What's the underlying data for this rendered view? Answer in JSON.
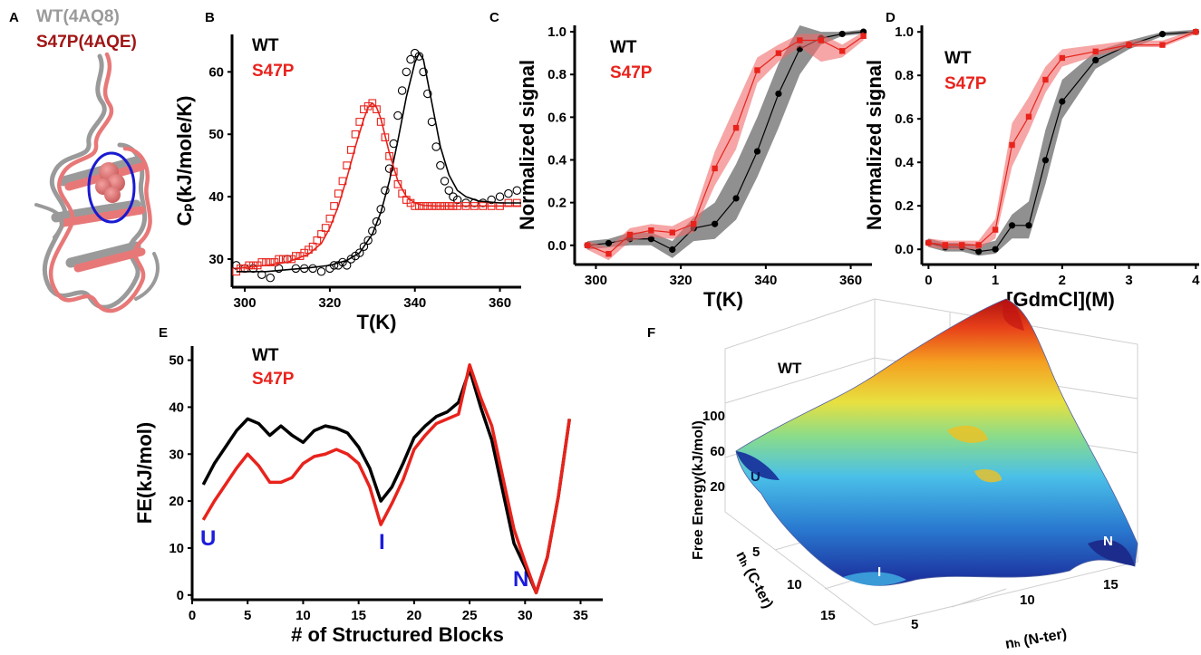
{
  "panels": {
    "A": {
      "label": "A",
      "legend": [
        "WT(4AQ8)",
        "S47P(4AQE)"
      ],
      "colors": [
        "#9a9a9a",
        "#a01616"
      ]
    },
    "B": {
      "label": "B",
      "legend": [
        "WT",
        "S47P"
      ]
    },
    "C": {
      "label": "C",
      "legend": [
        "WT",
        "S47P"
      ]
    },
    "D": {
      "label": "D",
      "legend": [
        "WT",
        "S47P"
      ]
    },
    "E": {
      "label": "E",
      "legend": [
        "WT",
        "S47P"
      ],
      "states": [
        "U",
        "I",
        "N"
      ]
    },
    "F": {
      "label": "F",
      "title": "WT",
      "states": [
        "U",
        "I",
        "N"
      ],
      "zlabel": "Free Energy(kJ/mol)",
      "xlabel": "nₕ (N-ter)",
      "ylabel": "nₕ (C-ter)",
      "xticks": [
        "5",
        "10",
        "15"
      ],
      "yticks": [
        "5",
        "10",
        "15"
      ],
      "zticks": [
        "20",
        "60",
        "100"
      ],
      "colormap": "jet"
    }
  },
  "colors": {
    "wt": "#000000",
    "s47p": "#e8231c",
    "wt_band": "#555555",
    "s47p_band": "#f06a6a",
    "state": "#1c1cdc"
  },
  "chart_data": [
    {
      "panel": "B",
      "type": "scatter",
      "xlabel": "T(K)",
      "ylabel": "Cₚ(kJ/mole/K)",
      "xlim": [
        297,
        365
      ],
      "ylim": [
        25.5,
        66
      ],
      "xticks": [
        300,
        320,
        340,
        360
      ],
      "yticks": [
        30,
        40,
        50,
        60
      ],
      "series": [
        {
          "name": "WT",
          "marker": "circle",
          "x": [
            298,
            300,
            302,
            304,
            306,
            308,
            310,
            312,
            314,
            316,
            318,
            320,
            321,
            322,
            323,
            324,
            325,
            326,
            327,
            328,
            329,
            330,
            331,
            332,
            333,
            334,
            335,
            336,
            337,
            338,
            339,
            340,
            341,
            342,
            343,
            344,
            345,
            346,
            347,
            348,
            349,
            350,
            352,
            354,
            356,
            358,
            360,
            362,
            364
          ],
          "y": [
            29,
            28.5,
            28.5,
            27.5,
            27,
            28.5,
            30,
            28.5,
            28.5,
            28.5,
            28,
            28.5,
            29,
            29,
            29.5,
            29,
            30,
            30.5,
            31,
            32,
            33,
            34.5,
            36,
            38,
            41,
            44.5,
            48.5,
            53,
            57,
            60,
            62,
            63,
            62.5,
            60,
            56.5,
            52,
            48,
            45,
            42.5,
            41,
            40,
            39.5,
            39,
            39,
            39,
            39.5,
            40,
            40.5,
            41
          ]
        },
        {
          "name": "S47P",
          "marker": "square",
          "x": [
            298,
            299,
            300,
            301,
            302,
            303,
            304,
            305,
            306,
            307,
            308,
            309,
            310,
            311,
            312,
            313,
            314,
            315,
            316,
            317,
            318,
            319,
            320,
            321,
            322,
            323,
            324,
            325,
            326,
            327,
            328,
            329,
            330,
            331,
            332,
            333,
            334,
            335,
            336,
            337,
            338,
            339,
            340,
            341,
            342,
            343,
            344,
            345,
            346,
            347,
            348,
            349,
            350,
            352,
            354,
            356,
            358,
            360,
            362,
            364
          ],
          "y": [
            28,
            28.5,
            28.5,
            29,
            29,
            29,
            29.5,
            29.5,
            29.5,
            29.5,
            30,
            30,
            30,
            30,
            30.5,
            30.5,
            31,
            31.5,
            32,
            33,
            34,
            35,
            36.5,
            38.5,
            40.5,
            42.5,
            45,
            47.5,
            50,
            52,
            54,
            54.5,
            55,
            54,
            52,
            49.5,
            46.5,
            44,
            42,
            40.5,
            39.5,
            39,
            38.5,
            38.5,
            38.5,
            38.5,
            38.5,
            38.5,
            38.5,
            38.5,
            38.5,
            38.5,
            38.5,
            38.5,
            38.5,
            38.5,
            38.5,
            38.5,
            39,
            39
          ]
        },
        {
          "name": "WT fit",
          "style": "line",
          "color": "#000000",
          "x": [
            298,
            305,
            310,
            315,
            320,
            324,
            327,
            330,
            332,
            334,
            336,
            338,
            340,
            341,
            342,
            344,
            346,
            348,
            350,
            352,
            355,
            360,
            365
          ],
          "y": [
            28,
            28,
            28.3,
            28.6,
            29,
            29.8,
            31,
            34,
            37.5,
            42.5,
            49,
            56,
            61.5,
            63,
            62,
            55,
            48,
            43.5,
            41,
            40,
            39.3,
            39,
            39
          ]
        },
        {
          "name": "S47P fit",
          "style": "line",
          "color": "#e8231c",
          "x": [
            298,
            305,
            310,
            315,
            318,
            320,
            322,
            324,
            326,
            328,
            329,
            330,
            331,
            332,
            334,
            336,
            338,
            340,
            342,
            345,
            350,
            355,
            360,
            365
          ],
          "y": [
            28.5,
            29,
            29.5,
            30.8,
            32.5,
            35,
            38.5,
            43,
            48,
            52.5,
            54.3,
            55,
            54.3,
            52.5,
            47,
            42.5,
            40,
            39,
            38.6,
            38.5,
            38.5,
            38.5,
            38.5,
            38.5
          ]
        }
      ]
    },
    {
      "panel": "C",
      "type": "line",
      "xlabel": "T(K)",
      "ylabel": "Normalized signal",
      "xlim": [
        295,
        365
      ],
      "ylim": [
        -0.09,
        1.03
      ],
      "xticks": [
        300,
        320,
        340,
        360
      ],
      "yticks": [
        0.0,
        0.2,
        0.4,
        0.6,
        0.8,
        1.0
      ],
      "series": [
        {
          "name": "WT",
          "color": "#000000",
          "marker": "circle",
          "x": [
            298,
            303,
            308,
            313,
            318,
            323,
            328,
            333,
            338,
            343,
            348,
            353,
            358,
            363
          ],
          "y": [
            0.0,
            0.01,
            0.03,
            0.03,
            -0.02,
            0.08,
            0.1,
            0.22,
            0.44,
            0.71,
            0.92,
            0.97,
            0.99,
            1.0
          ],
          "band_low": [
            -0.02,
            -0.01,
            0.0,
            0.0,
            -0.06,
            0.02,
            0.03,
            0.12,
            0.32,
            0.55,
            0.8,
            0.94,
            0.98,
            0.99
          ],
          "band_high": [
            0.02,
            0.03,
            0.06,
            0.06,
            0.02,
            0.13,
            0.2,
            0.38,
            0.6,
            0.85,
            1.03,
            1.0,
            1.0,
            1.01
          ]
        },
        {
          "name": "S47P",
          "color": "#e8231c",
          "marker": "square",
          "x": [
            298,
            303,
            308,
            313,
            318,
            323,
            328,
            333,
            338,
            343,
            348,
            353,
            358,
            363
          ],
          "y": [
            0.0,
            -0.04,
            0.05,
            0.07,
            0.06,
            0.1,
            0.36,
            0.55,
            0.82,
            0.9,
            0.96,
            0.96,
            0.91,
            0.98
          ],
          "band_low": [
            -0.02,
            -0.07,
            0.02,
            0.04,
            0.03,
            0.06,
            0.28,
            0.45,
            0.76,
            0.86,
            0.93,
            0.86,
            0.88,
            0.96
          ],
          "band_high": [
            0.02,
            -0.01,
            0.08,
            0.1,
            0.09,
            0.14,
            0.44,
            0.66,
            0.88,
            0.94,
            0.99,
            0.99,
            0.94,
            1.0
          ]
        }
      ]
    },
    {
      "panel": "D",
      "type": "line",
      "xlabel": "[GdmCl](M)",
      "ylabel": "Normalized signal",
      "xlim": [
        -0.1,
        4.05
      ],
      "ylim": [
        -0.07,
        1.03
      ],
      "xticks": [
        0,
        1,
        2,
        3,
        4
      ],
      "yticks": [
        0.0,
        0.2,
        0.4,
        0.6,
        0.8,
        1.0
      ],
      "series": [
        {
          "name": "WT",
          "color": "#000000",
          "marker": "circle",
          "x": [
            0,
            0.25,
            0.5,
            0.75,
            1.0,
            1.25,
            1.5,
            1.75,
            2.0,
            2.5,
            3.0,
            3.5,
            4.0
          ],
          "y": [
            0.03,
            0.01,
            0.01,
            -0.01,
            0.0,
            0.11,
            0.11,
            0.41,
            0.68,
            0.87,
            0.94,
            0.99,
            1.0
          ],
          "band_low": [
            0.01,
            -0.01,
            -0.01,
            -0.03,
            -0.02,
            0.05,
            0.05,
            0.3,
            0.6,
            0.83,
            0.92,
            0.98,
            0.99
          ],
          "band_high": [
            0.05,
            0.03,
            0.03,
            0.02,
            0.04,
            0.16,
            0.22,
            0.55,
            0.78,
            0.91,
            0.96,
            1.0,
            1.01
          ]
        },
        {
          "name": "S47P",
          "color": "#e8231c",
          "marker": "square",
          "x": [
            0,
            0.25,
            0.5,
            0.75,
            1.0,
            1.25,
            1.5,
            1.75,
            2.0,
            2.5,
            3.0,
            3.5,
            4.0
          ],
          "y": [
            0.03,
            0.02,
            0.02,
            0.02,
            0.09,
            0.48,
            0.61,
            0.78,
            0.88,
            0.91,
            0.94,
            0.94,
            1.0
          ],
          "band_low": [
            0.01,
            0.0,
            0.0,
            0.0,
            0.05,
            0.38,
            0.54,
            0.72,
            0.84,
            0.89,
            0.93,
            0.93,
            0.99
          ],
          "band_high": [
            0.05,
            0.04,
            0.04,
            0.04,
            0.14,
            0.58,
            0.7,
            0.84,
            0.92,
            0.94,
            0.96,
            0.96,
            1.01
          ]
        }
      ]
    },
    {
      "panel": "E",
      "type": "line",
      "xlabel": "# of Structured Blocks",
      "ylabel": "FE(kJ/mol)",
      "xlim": [
        0,
        37
      ],
      "ylim": [
        -1,
        53
      ],
      "xticks": [
        0,
        5,
        10,
        15,
        20,
        25,
        30,
        35
      ],
      "yticks": [
        0,
        10,
        20,
        30,
        40,
        50
      ],
      "series": [
        {
          "name": "WT",
          "color": "#000000",
          "x": [
            1,
            2,
            3,
            4,
            5,
            6,
            7,
            8,
            9,
            10,
            11,
            12,
            13,
            14,
            15,
            16,
            17,
            18,
            19,
            20,
            21,
            22,
            23,
            24,
            25,
            26,
            27,
            28,
            29,
            30,
            31,
            32,
            33,
            34
          ],
          "y": [
            23.5,
            28,
            31.5,
            35,
            37.5,
            36.5,
            34,
            36,
            34,
            32.5,
            35,
            36,
            35.5,
            34.5,
            31.5,
            27,
            20,
            23,
            28,
            33.5,
            36,
            38,
            39,
            41,
            48,
            40,
            33,
            22,
            11,
            6,
            0.5,
            8,
            21,
            37.5
          ]
        },
        {
          "name": "S47P",
          "color": "#e8231c",
          "x": [
            1,
            2,
            3,
            4,
            5,
            6,
            7,
            8,
            9,
            10,
            11,
            12,
            13,
            14,
            15,
            16,
            17,
            18,
            19,
            20,
            21,
            22,
            23,
            24,
            25,
            26,
            27,
            28,
            29,
            30,
            31,
            32,
            33,
            34
          ],
          "y": [
            16,
            20,
            23.5,
            27,
            30,
            27.5,
            24,
            24,
            25,
            28,
            29.5,
            30,
            31,
            30,
            28,
            23,
            15,
            19.5,
            24.5,
            31,
            34,
            36.5,
            37.5,
            38.5,
            49,
            42,
            36,
            25,
            14,
            7,
            0.5,
            8,
            21,
            37.5
          ]
        }
      ]
    }
  ]
}
